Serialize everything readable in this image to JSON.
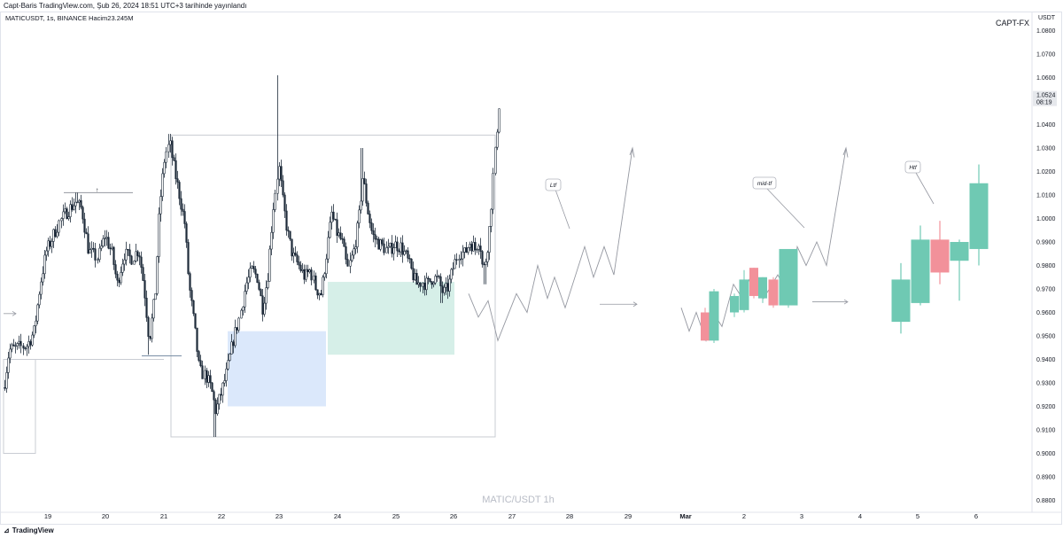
{
  "header": {
    "text": "Capt-Baris TradingView.com, Şub 26, 2024 18:51 UTC+3 tarihinde yayınlandı"
  },
  "symbol_info": "MATICUSDT, 1s, BINANCE  Hacim23.245M",
  "author": "CAPT-FX",
  "yaxis_title": "USDT",
  "footer": {
    "logo_glyph": "⊿",
    "logo_text": "TradingView"
  },
  "colors": {
    "up": "#1e2b3a",
    "down": "#1e2b3a",
    "proj_up": "#6fc9b3",
    "proj_down": "#f2919a",
    "blue_zone": "#dbe8fb",
    "green_zone": "#d6efe8",
    "box_line": "#c9ccd3",
    "path": "#9598a1"
  },
  "chart_data": {
    "type": "candlestick",
    "y_axis": {
      "min": 0.88,
      "max": 1.08,
      "ticks": [
        "1.0800",
        "1.0700",
        "1.0600",
        "1.0500",
        "1.0400",
        "1.0300",
        "1.0200",
        "1.0100",
        "1.0000",
        "0.9900",
        "0.9800",
        "0.9700",
        "0.9600",
        "0.9500",
        "0.9400",
        "0.9300",
        "0.9200",
        "0.9100",
        "0.9000",
        "0.8900",
        "0.8800"
      ]
    },
    "x_axis": {
      "ticks": [
        "19",
        "20",
        "21",
        "22",
        "23",
        "24",
        "25",
        "26",
        "27",
        "28",
        "29",
        "Mar",
        "2",
        "3",
        "4",
        "5",
        "6"
      ]
    },
    "last_price": {
      "value": "1.0524",
      "countdown": "08:19"
    },
    "watermark": "MATIC/USDT 1h",
    "annotations": [
      "Ltf",
      "mid-tf",
      "Htf"
    ],
    "projection_candles_mid": [
      {
        "o": 0.96,
        "c": 0.948,
        "h": 0.962,
        "l": 0.948
      },
      {
        "o": 0.948,
        "c": 0.969,
        "h": 0.97,
        "l": 0.947
      },
      {
        "o": 0.96,
        "c": 0.967,
        "h": 0.968,
        "l": 0.958
      },
      {
        "o": 0.961,
        "c": 0.974,
        "h": 0.978,
        "l": 0.96
      },
      {
        "o": 0.979,
        "c": 0.967,
        "h": 0.979,
        "l": 0.966
      },
      {
        "o": 0.966,
        "c": 0.975,
        "h": 0.975,
        "l": 0.964
      },
      {
        "o": 0.974,
        "c": 0.963,
        "h": 0.975,
        "l": 0.962
      },
      {
        "o": 0.963,
        "c": 0.987,
        "h": 0.987,
        "l": 0.962
      }
    ],
    "projection_candles_htf": [
      {
        "o": 0.956,
        "c": 0.974,
        "h": 0.981,
        "l": 0.951
      },
      {
        "o": 0.964,
        "c": 0.991,
        "h": 0.997,
        "l": 0.963
      },
      {
        "o": 0.991,
        "c": 0.977,
        "h": 0.999,
        "l": 0.972
      },
      {
        "o": 0.982,
        "c": 0.99,
        "h": 0.991,
        "l": 0.965
      },
      {
        "o": 0.987,
        "c": 1.015,
        "h": 1.023,
        "l": 0.98
      }
    ]
  }
}
